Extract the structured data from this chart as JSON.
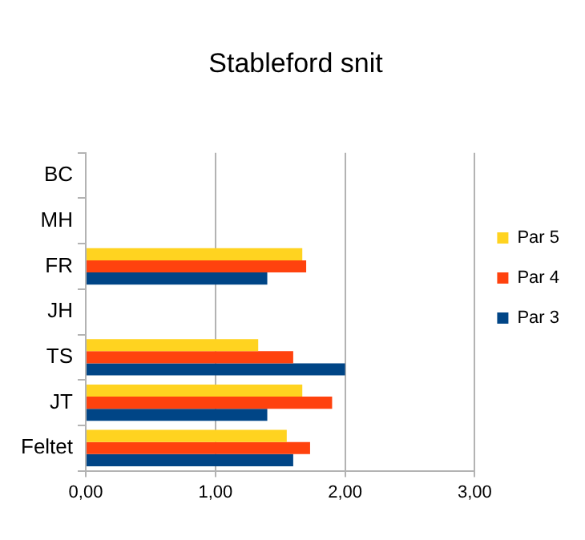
{
  "chart_data": {
    "type": "bar",
    "title": "Stableford snit",
    "orientation": "horizontal",
    "categories": [
      "BC",
      "MH",
      "FR",
      "JH",
      "TS",
      "JT",
      "Feltet"
    ],
    "series": [
      {
        "name": "Par 5",
        "color": "#ffd320",
        "values": [
          null,
          null,
          1.67,
          null,
          1.33,
          1.67,
          1.55
        ]
      },
      {
        "name": "Par 4",
        "color": "#ff420e",
        "values": [
          null,
          null,
          1.7,
          null,
          1.6,
          1.9,
          1.73
        ]
      },
      {
        "name": "Par 3",
        "color": "#004586",
        "values": [
          null,
          null,
          1.4,
          null,
          2.0,
          1.4,
          1.6
        ]
      }
    ],
    "xlim": [
      0,
      3
    ],
    "xticks": [
      {
        "value": 0,
        "label": "0,00"
      },
      {
        "value": 1,
        "label": "1,00"
      },
      {
        "value": 2,
        "label": "2,00"
      },
      {
        "value": 3,
        "label": "3,00"
      }
    ],
    "grid": "x",
    "legend": "right"
  }
}
